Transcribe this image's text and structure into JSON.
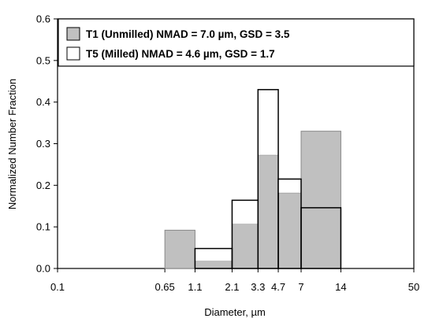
{
  "chart_data": {
    "type": "bar",
    "title": "",
    "xlabel": "Diameter, µm",
    "ylabel": "Normalized Number Fraction",
    "x_scale": "log",
    "xlim": [
      0.1,
      50
    ],
    "ylim": [
      0,
      0.6
    ],
    "x_ticks": [
      0.1,
      0.65,
      1.1,
      2.1,
      3.3,
      4.7,
      7,
      14,
      50
    ],
    "x_tick_labels": [
      "0.1",
      "0.65",
      "1.1",
      "2.1",
      "3.3",
      "4.7",
      "7",
      "14",
      "50"
    ],
    "y_ticks": [
      0,
      0.1,
      0.2,
      0.3,
      0.4,
      0.5,
      0.6
    ],
    "y_tick_labels": [
      "0.0",
      "0.1",
      "0.2",
      "0.3",
      "0.4",
      "0.5",
      "0.6"
    ],
    "bin_edges": [
      0.65,
      1.1,
      2.1,
      3.3,
      4.7,
      7,
      14
    ],
    "series": [
      {
        "name": "T1 (Unmilled) NMAD = 7.0 µm, GSD = 3.5",
        "fill": "#c0c0c0",
        "values": [
          0.092,
          0.018,
          0.107,
          0.273,
          0.182,
          0.33
        ]
      },
      {
        "name": "T5 (Milled) NMAD = 4.6 µm, GSD = 1.7",
        "fill": "#ffffff",
        "values": [
          0.0,
          0.048,
          0.164,
          0.43,
          0.215,
          0.146
        ]
      }
    ],
    "legend_position": "top-left",
    "grid": false
  }
}
